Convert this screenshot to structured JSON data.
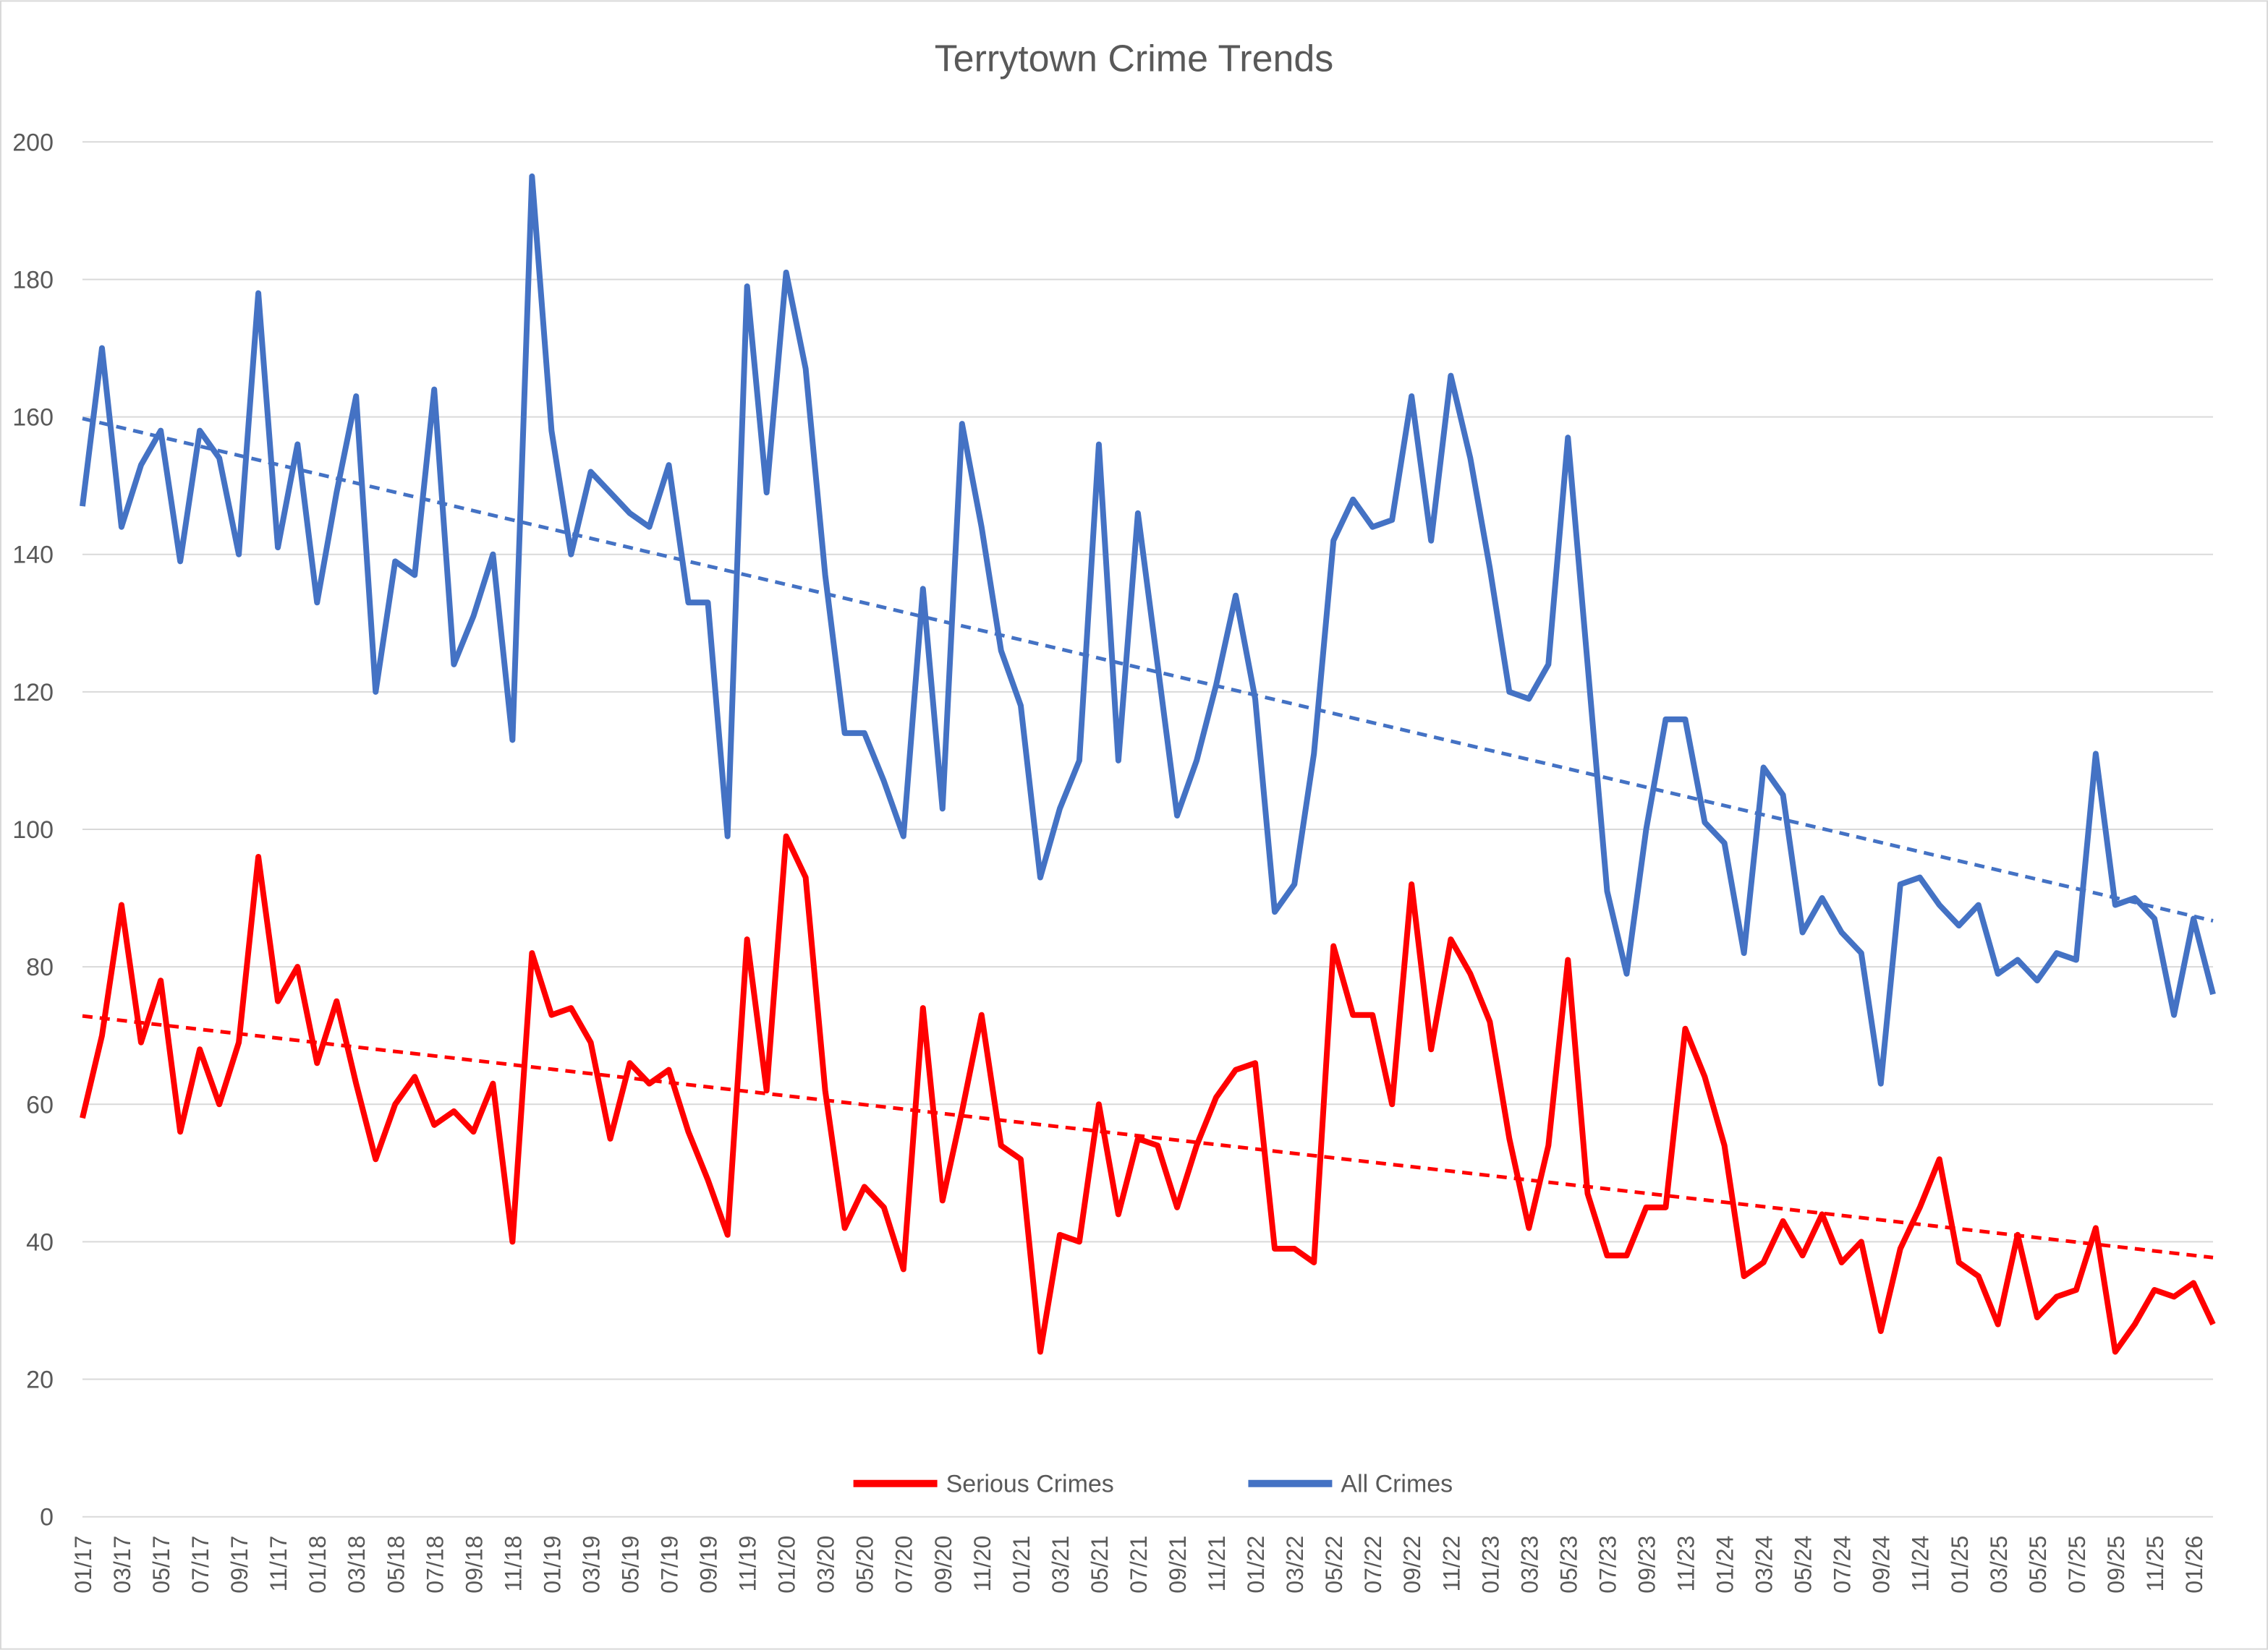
{
  "chart_data": {
    "type": "line",
    "title": "Terrytown Crime Trends",
    "xlabel": "",
    "ylabel": "",
    "ylim": [
      0,
      200
    ],
    "yticks": [
      0,
      20,
      40,
      60,
      80,
      100,
      120,
      140,
      160,
      180,
      200
    ],
    "grid": true,
    "legend_position": "bottom",
    "start_month": "01/17",
    "xtick_labels": [
      "01/17",
      "03/17",
      "05/17",
      "07/17",
      "09/17",
      "11/17",
      "01/18",
      "03/18",
      "05/18",
      "07/18",
      "09/18",
      "11/18",
      "01/19",
      "03/19",
      "05/19",
      "07/19",
      "09/19",
      "11/19",
      "01/20",
      "03/20",
      "05/20",
      "07/20",
      "09/20",
      "11/20",
      "01/21",
      "03/21",
      "05/21",
      "07/21",
      "09/21",
      "11/21",
      "01/22",
      "03/22",
      "05/22",
      "07/22",
      "09/22",
      "11/22",
      "01/23",
      "03/23",
      "05/23",
      "07/23",
      "09/23",
      "11/23",
      "01/24",
      "03/24",
      "05/24",
      "07/24",
      "09/24",
      "11/24",
      "01/25",
      "03/25",
      "05/25",
      "07/25",
      "09/25",
      "11/25",
      "01/26"
    ],
    "series": [
      {
        "name": "Serious Crimes",
        "color": "#ff0000",
        "trendline": "linear",
        "values": [
          58,
          70,
          89,
          69,
          78,
          56,
          68,
          60,
          69,
          96,
          75,
          80,
          66,
          75,
          63,
          52,
          60,
          64,
          57,
          59,
          56,
          63,
          40,
          82,
          73,
          74,
          69,
          55,
          66,
          63,
          65,
          56,
          49,
          41,
          84,
          62,
          99,
          93,
          62,
          42,
          48,
          45,
          36,
          74,
          46,
          59,
          73,
          54,
          52,
          24,
          41,
          40,
          60,
          44,
          55,
          54,
          45,
          54,
          61,
          65,
          66,
          39,
          39,
          37,
          83,
          73,
          73,
          60,
          92,
          68,
          84,
          79,
          72,
          55,
          42,
          54,
          81,
          47,
          38,
          38,
          45,
          45,
          71,
          64,
          54,
          35,
          37,
          43,
          38,
          44,
          37,
          40,
          27,
          39,
          45,
          52,
          37,
          35,
          28,
          41,
          29,
          32,
          33,
          42,
          24,
          28,
          33,
          32,
          34,
          28
        ]
      },
      {
        "name": "All Crimes",
        "color": "#4472c4",
        "trendline": "linear",
        "values": [
          147,
          170,
          144,
          153,
          158,
          139,
          158,
          154,
          140,
          178,
          141,
          156,
          133,
          149,
          163,
          120,
          139,
          137,
          164,
          124,
          131,
          140,
          113,
          195,
          158,
          140,
          152,
          149,
          146,
          144,
          153,
          133,
          133,
          99,
          179,
          149,
          181,
          167,
          137,
          114,
          114,
          107,
          99,
          135,
          103,
          159,
          144,
          126,
          118,
          93,
          103,
          110,
          156,
          110,
          146,
          124,
          102,
          110,
          121,
          134,
          119,
          88,
          92,
          111,
          142,
          148,
          144,
          145,
          163,
          142,
          166,
          154,
          138,
          120,
          119,
          124,
          157,
          124,
          91,
          79,
          100,
          116,
          116,
          101,
          98,
          82,
          109,
          105,
          85,
          90,
          85,
          82,
          63,
          92,
          93,
          89,
          86,
          89,
          79,
          81,
          78,
          82,
          81,
          111,
          89,
          90,
          87,
          73,
          87,
          76
        ]
      }
    ]
  }
}
